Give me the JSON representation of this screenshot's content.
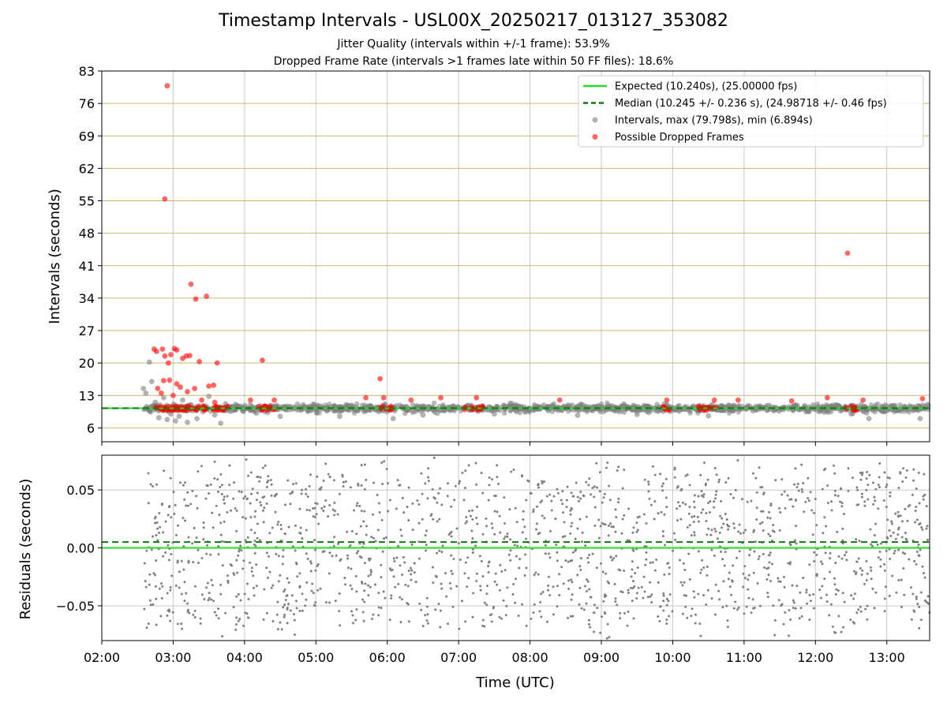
{
  "title": "Timestamp Intervals - USL00X_20250217_013127_353082",
  "subtitle_jitter": "Jitter Quality (intervals within +/-1 frame): 53.9%",
  "subtitle_dropped": "Dropped Frame Rate (intervals >1 frames late within 50 FF files): 18.6%",
  "colors": {
    "expected": "#22dd22",
    "median": "#117711",
    "intervals": "#808080",
    "dropped": "#ff0000",
    "hgrid": "#d4b46a",
    "vgrid": "#c8c8c8"
  },
  "chart_data": [
    {
      "type": "scatter",
      "ylabel": "Intervals (seconds)",
      "ylim": [
        3,
        83
      ],
      "yticks": [
        "6",
        "13",
        "20",
        "27",
        "34",
        "41",
        "48",
        "55",
        "62",
        "69",
        "76",
        "83"
      ],
      "xlim": [
        "02:00",
        "13:36"
      ],
      "grid": true,
      "legend_position": "top-right",
      "legend": [
        "Expected (10.240s), (25.00000 fps)",
        "Median (10.245 +/- 0.236 s), (24.98718 +/- 0.46 fps)",
        "Intervals, max (79.798s), min (6.894s)",
        "Possible Dropped Frames"
      ],
      "expected_interval": 10.24,
      "median_interval": 10.245,
      "interval_range": [
        6.894,
        79.798
      ],
      "series": [
        {
          "name": "Intervals, max (79.798s), min (6.894s)",
          "points": [
            [
              "02:35",
              14.5
            ],
            [
              "02:37",
              13.5
            ],
            [
              "02:40",
              20.2
            ],
            [
              "02:42",
              16.0
            ],
            [
              "02:45",
              11.5
            ],
            [
              "02:48",
              8.2
            ],
            [
              "02:52",
              12.5
            ],
            [
              "02:55",
              7.8
            ],
            [
              "02:58",
              9.0
            ],
            [
              "03:02",
              7.5
            ],
            [
              "03:05",
              8.5
            ],
            [
              "03:08",
              12.0
            ],
            [
              "03:12",
              7.2
            ],
            [
              "03:15",
              11.0
            ],
            [
              "03:20",
              8.0
            ],
            [
              "03:25",
              9.5
            ],
            [
              "03:30",
              12.8
            ],
            [
              "03:35",
              8.8
            ],
            [
              "03:40",
              7.0
            ],
            [
              "03:44",
              11.2
            ],
            [
              "03:48",
              9.6
            ],
            [
              "04:10",
              9.2
            ],
            [
              "04:30",
              8.5
            ],
            [
              "05:20",
              8.5
            ],
            [
              "06:05",
              8.0
            ],
            [
              "06:30",
              8.8
            ],
            [
              "07:30",
              9.0
            ],
            [
              "08:40",
              8.7
            ],
            [
              "09:30",
              8.9
            ],
            [
              "10:30",
              8.6
            ],
            [
              "12:30",
              9.0
            ],
            [
              "12:45",
              8.0
            ],
            [
              "13:28",
              8.0
            ]
          ]
        },
        {
          "name": "Possible Dropped Frames",
          "points": [
            [
              "02:55",
              79.798
            ],
            [
              "02:53",
              55.4
            ],
            [
              "03:15",
              37.0
            ],
            [
              "03:19",
              33.8
            ],
            [
              "03:28",
              34.4
            ],
            [
              "04:15",
              20.6
            ],
            [
              "05:54",
              16.6
            ],
            [
              "12:27",
              43.7
            ],
            [
              "02:44",
              23.0
            ],
            [
              "02:46",
              22.5
            ],
            [
              "02:51",
              23.0
            ],
            [
              "02:53",
              21.5
            ],
            [
              "02:56",
              20.0
            ],
            [
              "02:58",
              21.8
            ],
            [
              "03:01",
              23.1
            ],
            [
              "03:03",
              22.8
            ],
            [
              "03:08",
              21.0
            ],
            [
              "03:11",
              21.5
            ],
            [
              "03:14",
              21.6
            ],
            [
              "03:22",
              20.3
            ],
            [
              "03:37",
              20.0
            ],
            [
              "02:52",
              16.2
            ],
            [
              "02:57",
              16.3
            ],
            [
              "03:03",
              15.5
            ],
            [
              "03:06",
              14.8
            ],
            [
              "03:12",
              13.8
            ],
            [
              "03:18",
              14.5
            ],
            [
              "03:30",
              15.0
            ],
            [
              "03:34",
              15.2
            ],
            [
              "02:47",
              14.5
            ],
            [
              "02:50",
              13.5
            ],
            [
              "03:00",
              13.0
            ],
            [
              "03:24",
              12.0
            ],
            [
              "03:35",
              11.5
            ],
            [
              "04:05",
              12.0
            ],
            [
              "04:25",
              12.0
            ],
            [
              "05:42",
              12.5
            ],
            [
              "05:57",
              12.5
            ],
            [
              "06:20",
              12.0
            ],
            [
              "06:45",
              12.5
            ],
            [
              "07:15",
              12.5
            ],
            [
              "08:25",
              12.0
            ],
            [
              "09:55",
              12.0
            ],
            [
              "10:35",
              12.0
            ],
            [
              "10:55",
              12.0
            ],
            [
              "11:40",
              11.8
            ],
            [
              "12:10",
              12.5
            ],
            [
              "12:40",
              12.0
            ],
            [
              "13:30",
              12.3
            ]
          ]
        }
      ]
    },
    {
      "type": "scatter",
      "xlabel": "Time (UTC)",
      "ylabel": "Residuals (seconds)",
      "ylim": [
        -0.08,
        0.08
      ],
      "yticks": [
        "−0.05",
        "0.00",
        "0.05"
      ],
      "xticks": [
        "02:00",
        "03:00",
        "04:00",
        "05:00",
        "06:00",
        "07:00",
        "08:00",
        "09:00",
        "10:00",
        "11:00",
        "12:00",
        "13:00"
      ],
      "xlim": [
        "02:00",
        "13:36"
      ],
      "grid": true,
      "expected_residual": 0.0,
      "median_residual": 0.005,
      "residual_spread": "mostly within ±0.08 s across 02:35–13:36"
    }
  ]
}
